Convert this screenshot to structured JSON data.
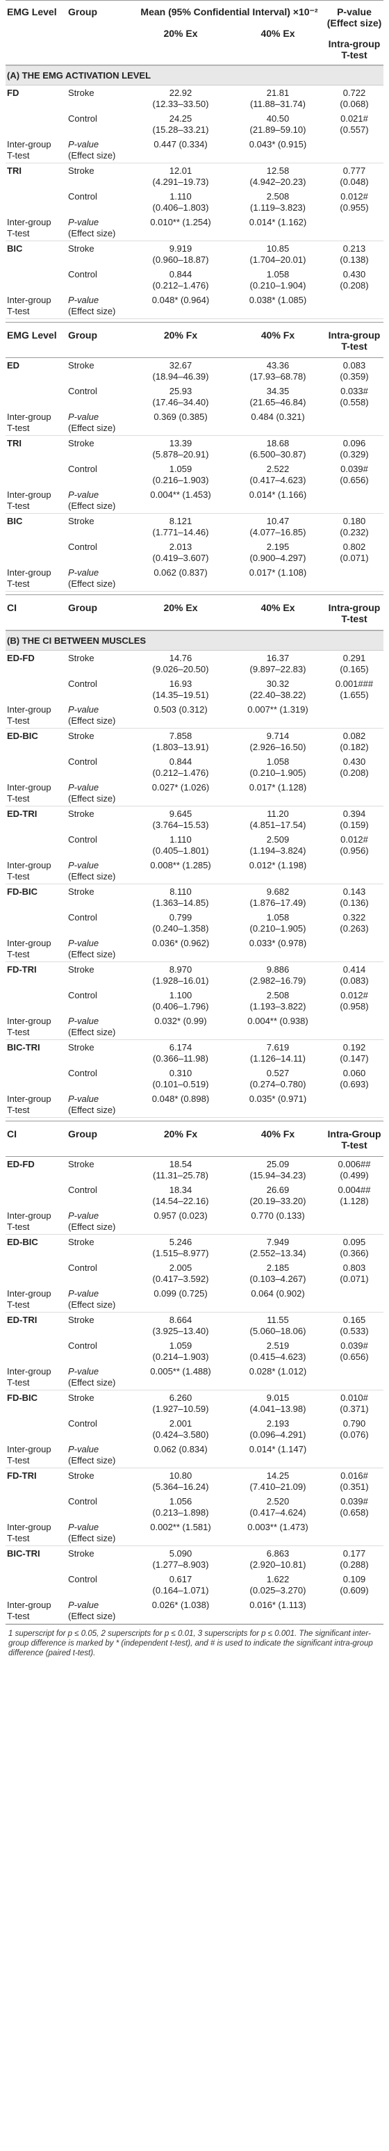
{
  "header": {
    "col_level": "EMG Level",
    "col_group": "Group",
    "col_mean": "Mean (95% Confidential Interval) ×10⁻²",
    "col_p": "P-value (Effect size)",
    "col_20": "20% Ex",
    "col_40": "40% Ex",
    "col_intra": "Intra-group T-test"
  },
  "sections": [
    {
      "title": "(A) THE EMG ACTIVATION LEVEL",
      "blocks": [
        {
          "label": "FD",
          "stroke": {
            "v20": "22.92",
            "ci20": "(12.33–33.50)",
            "v40": "21.81",
            "ci40": "(11.88–31.74)",
            "p": "0.722",
            "e": "(0.068)"
          },
          "control": {
            "v20": "24.25",
            "ci20": "(15.28–33.21)",
            "v40": "40.50",
            "ci40": "(21.89–59.10)",
            "p": "0.021#",
            "e": "(0.557)"
          },
          "inter": {
            "a": "0.447 (0.334)",
            "b": "0.043* (0.915)"
          }
        },
        {
          "label": "TRI",
          "stroke": {
            "v20": "12.01",
            "ci20": "(4.291–19.73)",
            "v40": "12.58",
            "ci40": "(4.942–20.23)",
            "p": "0.777",
            "e": "(0.048)"
          },
          "control": {
            "v20": "1.110",
            "ci20": "(0.406–1.803)",
            "v40": "2.508",
            "ci40": "(1.119–3.823)",
            "p": "0.012#",
            "e": "(0.955)"
          },
          "inter": {
            "a": "0.010** (1.254)",
            "b": "0.014* (1.162)"
          }
        },
        {
          "label": "BIC",
          "stroke": {
            "v20": "9.919",
            "ci20": "(0.960–18.87)",
            "v40": "10.85",
            "ci40": "(1.704–20.01)",
            "p": "0.213",
            "e": "(0.138)"
          },
          "control": {
            "v20": "0.844",
            "ci20": "(0.212–1.476)",
            "v40": "1.058",
            "ci40": "(0.210–1.904)",
            "p": "0.430",
            "e": "(0.208)"
          },
          "inter": {
            "a": "0.048* (0.964)",
            "b": "0.038* (1.085)"
          }
        }
      ]
    },
    {
      "title": "",
      "header": {
        "c1": "EMG Level",
        "c2": "Group",
        "c3": "20% Fx",
        "c4": "40% Fx",
        "c5": "Intra-group T-test"
      },
      "blocks": [
        {
          "label": "ED",
          "stroke": {
            "v20": "32.67",
            "ci20": "(18.94–46.39)",
            "v40": "43.36",
            "ci40": "(17.93–68.78)",
            "p": "0.083",
            "e": "(0.359)"
          },
          "control": {
            "v20": "25.93",
            "ci20": "(17.46–34.40)",
            "v40": "34.35",
            "ci40": "(21.65–46.84)",
            "p": "0.033#",
            "e": "(0.558)"
          },
          "inter": {
            "a": "0.369 (0.385)",
            "b": "0.484 (0.321)"
          }
        },
        {
          "label": "TRI",
          "stroke": {
            "v20": "13.39",
            "ci20": "(5.878–20.91)",
            "v40": "18.68",
            "ci40": "(6.500–30.87)",
            "p": "0.096",
            "e": "(0.329)"
          },
          "control": {
            "v20": "1.059",
            "ci20": "(0.216–1.903)",
            "v40": "2.522",
            "ci40": "(0.417–4.623)",
            "p": "0.039#",
            "e": "(0.656)"
          },
          "inter": {
            "a": "0.004** (1.453)",
            "b": "0.014* (1.166)"
          }
        },
        {
          "label": "BIC",
          "stroke": {
            "v20": "8.121",
            "ci20": "(1.771–14.46)",
            "v40": "10.47",
            "ci40": "(4.077–16.85)",
            "p": "0.180",
            "e": "(0.232)"
          },
          "control": {
            "v20": "2.013",
            "ci20": "(0.419–3.607)",
            "v40": "2.195",
            "ci40": "(0.900–4.297)",
            "p": "0.802",
            "e": "(0.071)"
          },
          "inter": {
            "a": "0.062 (0.837)",
            "b": "0.017* (1.108)"
          }
        }
      ]
    },
    {
      "title": "(B) THE CI BETWEEN MUSCLES",
      "header": {
        "c1": "CI",
        "c2": "Group",
        "c3": "20% Ex",
        "c4": "40% Ex",
        "c5": "Intra-group T-test"
      },
      "blocks": [
        {
          "label": "ED-FD",
          "stroke": {
            "v20": "14.76",
            "ci20": "(9.026–20.50)",
            "v40": "16.37",
            "ci40": "(9.897–22.83)",
            "p": "0.291",
            "e": "(0.165)"
          },
          "control": {
            "v20": "16.93",
            "ci20": "(14.35–19.51)",
            "v40": "30.32",
            "ci40": "(22.40–38.22)",
            "p": "0.001###",
            "e": "(1.655)"
          },
          "inter": {
            "a": "0.503 (0.312)",
            "b": "0.007** (1.319)"
          }
        },
        {
          "label": "ED-BIC",
          "stroke": {
            "v20": "7.858",
            "ci20": "(1.803–13.91)",
            "v40": "9.714",
            "ci40": "(2.926–16.50)",
            "p": "0.082",
            "e": "(0.182)"
          },
          "control": {
            "v20": "0.844",
            "ci20": "(0.212–1.476)",
            "v40": "1.058",
            "ci40": "(0.210–1.905)",
            "p": "0.430",
            "e": "(0.208)"
          },
          "inter": {
            "a": "0.027* (1.026)",
            "b": "0.017* (1.128)"
          }
        },
        {
          "label": "ED-TRI",
          "stroke": {
            "v20": "9.645",
            "ci20": "(3.764–15.53)",
            "v40": "11.20",
            "ci40": "(4.851–17.54)",
            "p": "0.394",
            "e": "(0.159)"
          },
          "control": {
            "v20": "1.110",
            "ci20": "(0.405–1.801)",
            "v40": "2.509",
            "ci40": "(1.194–3.824)",
            "p": "0.012#",
            "e": "(0.956)"
          },
          "inter": {
            "a": "0.008** (1.285)",
            "b": "0.012* (1.198)"
          }
        },
        {
          "label": "FD-BIC",
          "stroke": {
            "v20": "8.110",
            "ci20": "(1.363–14.85)",
            "v40": "9.682",
            "ci40": "(1.876–17.49)",
            "p": "0.143",
            "e": "(0.136)"
          },
          "control": {
            "v20": "0.799",
            "ci20": "(0.240–1.358)",
            "v40": "1.058",
            "ci40": "(0.210–1.905)",
            "p": "0.322",
            "e": "(0.263)"
          },
          "inter": {
            "a": "0.036* (0.962)",
            "b": "0.033* (0.978)"
          }
        },
        {
          "label": "FD-TRI",
          "stroke": {
            "v20": "8.970",
            "ci20": "(1.928–16.01)",
            "v40": "9.886",
            "ci40": "(2.982–16.79)",
            "p": "0.414",
            "e": "(0.083)"
          },
          "control": {
            "v20": "1.100",
            "ci20": "(0.406–1.796)",
            "v40": "2.508",
            "ci40": "(1.193–3.822)",
            "p": "0.012#",
            "e": "(0.958)"
          },
          "inter": {
            "a": "0.032* (0.99)",
            "b": "0.004** (0.938)"
          }
        },
        {
          "label": "BIC-TRI",
          "stroke": {
            "v20": "6.174",
            "ci20": "(0.366–11.98)",
            "v40": "7.619",
            "ci40": "(1.126–14.11)",
            "p": "0.192",
            "e": "(0.147)"
          },
          "control": {
            "v20": "0.310",
            "ci20": "(0.101–0.519)",
            "v40": "0.527",
            "ci40": "(0.274–0.780)",
            "p": "0.060",
            "e": "(0.693)"
          },
          "inter": {
            "a": "0.048* (0.898)",
            "b": "0.035* (0.971)"
          }
        }
      ]
    },
    {
      "title": "",
      "header": {
        "c1": "CI",
        "c2": "Group",
        "c3": "20% Fx",
        "c4": "40% Fx",
        "c5": "Intra-Group T-test"
      },
      "blocks": [
        {
          "label": "ED-FD",
          "stroke": {
            "v20": "18.54",
            "ci20": "(11.31–25.78)",
            "v40": "25.09",
            "ci40": "(15.94–34.23)",
            "p": "0.006##",
            "e": "(0.499)"
          },
          "control": {
            "v20": "18.34",
            "ci20": "(14.54–22.16)",
            "v40": "26.69",
            "ci40": "(20.19–33.20)",
            "p": "0.004##",
            "e": "(1.128)"
          },
          "inter": {
            "a": "0.957 (0.023)",
            "b": "0.770 (0.133)"
          }
        },
        {
          "label": "ED-BIC",
          "stroke": {
            "v20": "5.246",
            "ci20": "(1.515–8.977)",
            "v40": "7.949",
            "ci40": "(2.552–13.34)",
            "p": "0.095",
            "e": "(0.366)"
          },
          "control": {
            "v20": "2.005",
            "ci20": "(0.417–3.592)",
            "v40": "2.185",
            "ci40": "(0.103–4.267)",
            "p": "0.803",
            "e": "(0.071)"
          },
          "inter": {
            "a": "0.099 (0.725)",
            "b": "0.064 (0.902)"
          }
        },
        {
          "label": "ED-TRI",
          "stroke": {
            "v20": "8.664",
            "ci20": "(3.925–13.40)",
            "v40": "11.55",
            "ci40": "(5.060–18.06)",
            "p": "0.165",
            "e": "(0.533)"
          },
          "control": {
            "v20": "1.059",
            "ci20": "(0.214–1.903)",
            "v40": "2.519",
            "ci40": "(0.415–4.623)",
            "p": "0.039#",
            "e": "(0.656)"
          },
          "inter": {
            "a": "0.005** (1.488)",
            "b": "0.028* (1.012)"
          }
        },
        {
          "label": "FD-BIC",
          "stroke": {
            "v20": "6.260",
            "ci20": "(1.927–10.59)",
            "v40": "9.015",
            "ci40": "(4.041–13.98)",
            "p": "0.010#",
            "e": "(0.371)"
          },
          "control": {
            "v20": "2.001",
            "ci20": "(0.424–3.580)",
            "v40": "2.193",
            "ci40": "(0.096–4.291)",
            "p": "0.790",
            "e": "(0.076)"
          },
          "inter": {
            "a": "0.062 (0.834)",
            "b": "0.014* (1.147)"
          }
        },
        {
          "label": "FD-TRI",
          "stroke": {
            "v20": "10.80",
            "ci20": "(5.364–16.24)",
            "v40": "14.25",
            "ci40": "(7.410–21.09)",
            "p": "0.016#",
            "e": "(0.351)"
          },
          "control": {
            "v20": "1.056",
            "ci20": "(0.213–1.898)",
            "v40": "2.520",
            "ci40": "(0.417–4.624)",
            "p": "0.039#",
            "e": "(0.658)"
          },
          "inter": {
            "a": "0.002** (1.581)",
            "b": "0.003** (1.473)"
          }
        },
        {
          "label": "BIC-TRI",
          "stroke": {
            "v20": "5.090",
            "ci20": "(1.277–8.903)",
            "v40": "6.863",
            "ci40": "(2.920–10.81)",
            "p": "0.177",
            "e": "(0.288)"
          },
          "control": {
            "v20": "0.617",
            "ci20": "(0.164–1.071)",
            "v40": "1.622",
            "ci40": "(0.025–3.270)",
            "p": "0.109",
            "e": "(0.609)"
          },
          "inter": {
            "a": "0.026* (1.038)",
            "b": "0.016* (1.113)"
          }
        }
      ]
    }
  ],
  "labels": {
    "stroke": "Stroke",
    "control": "Control",
    "inter_l1": "Inter-group",
    "inter_l2": "T-test",
    "p_l1": "P-value",
    "p_l2": "(Effect size)"
  },
  "footnote": "1 superscript for p ≤ 0.05, 2 superscripts for p ≤ 0.01, 3 superscripts for p ≤ 0.001. The significant inter-group difference is marked by * (independent t-test), and # is used to indicate the significant intra-group difference (paired t-test)."
}
